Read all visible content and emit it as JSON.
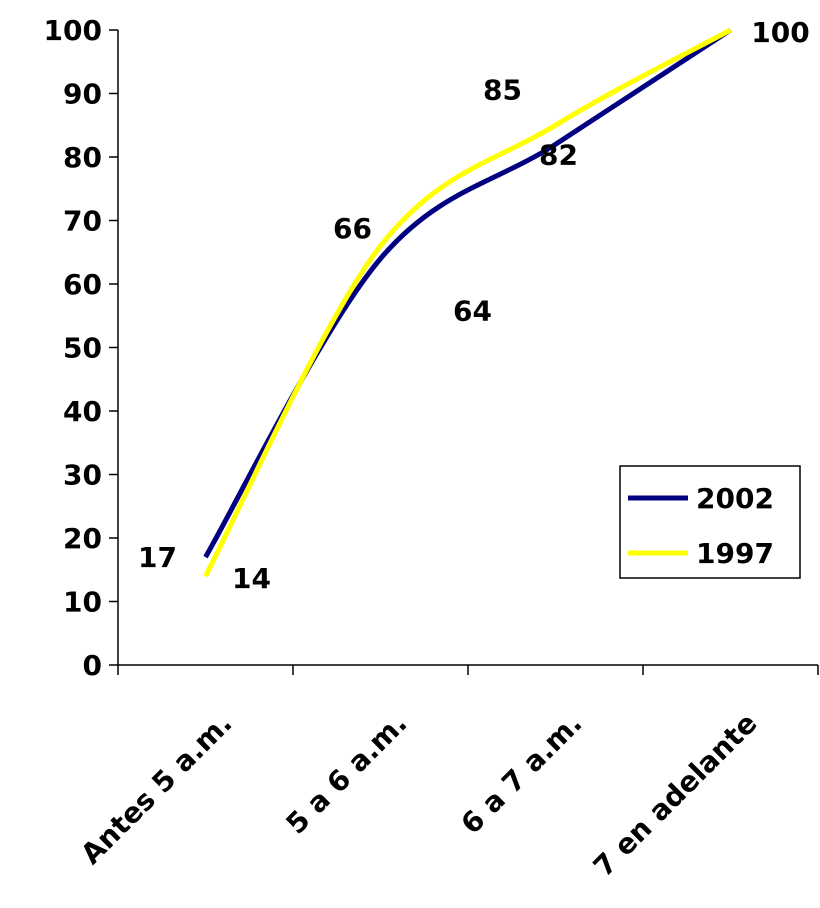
{
  "chart_data": {
    "type": "line",
    "categories": [
      "Antes 5 a.m.",
      "5 a 6 a.m.",
      "6 a 7 a.m.",
      "7 en adelante"
    ],
    "series": [
      {
        "name": "2002",
        "values": [
          17,
          64,
          82,
          100
        ],
        "color": "#000080"
      },
      {
        "name": "1997",
        "values": [
          14,
          66,
          85,
          100
        ],
        "color": "#FFFF00"
      }
    ],
    "data_labels": [
      {
        "series": "2002",
        "index": 0,
        "text": "17"
      },
      {
        "series": "1997",
        "index": 0,
        "text": "14"
      },
      {
        "series": "1997",
        "index": 1,
        "text": "66"
      },
      {
        "series": "2002",
        "index": 1,
        "text": "64"
      },
      {
        "series": "1997",
        "index": 2,
        "text": "85"
      },
      {
        "series": "2002",
        "index": 2,
        "text": "82"
      },
      {
        "series": "2002",
        "index": 3,
        "text": "100"
      }
    ],
    "ylim": [
      0,
      100
    ],
    "yticks": [
      "0",
      "10",
      "20",
      "30",
      "40",
      "50",
      "60",
      "70",
      "80",
      "90",
      "100"
    ],
    "grid": false,
    "smooth": true,
    "legend_position": "right",
    "title": "",
    "xlabel": "",
    "ylabel": ""
  }
}
